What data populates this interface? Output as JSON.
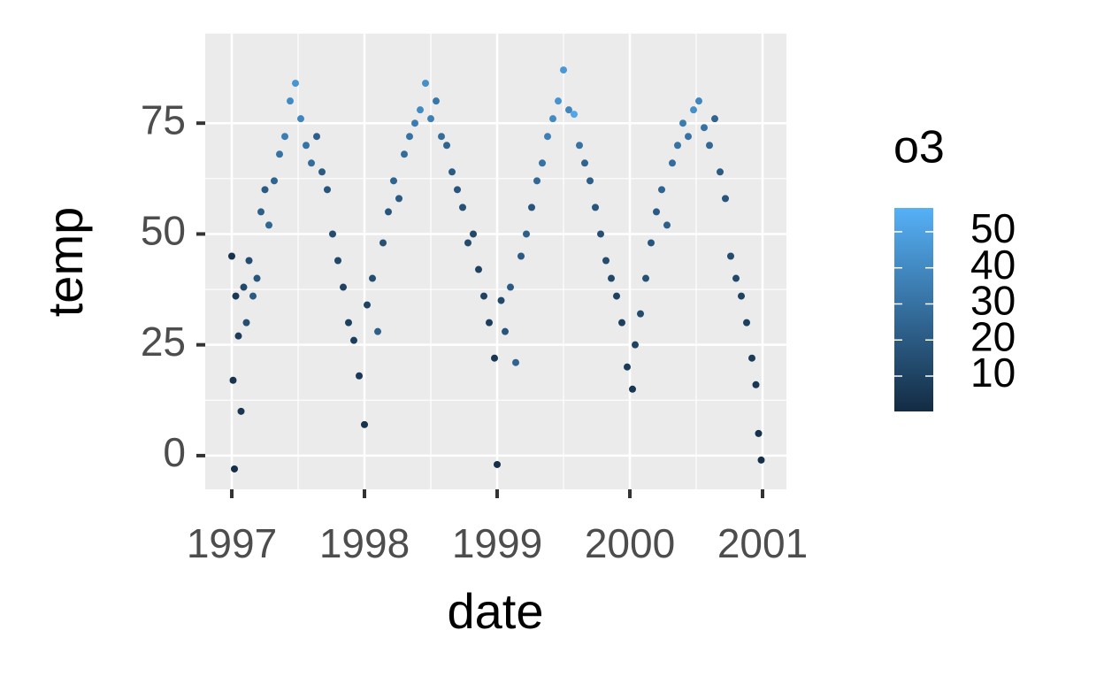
{
  "chart_data": {
    "type": "scatter",
    "x_label": "date",
    "y_label": "temp",
    "x": [
      1997.0,
      1997.01,
      1997.02,
      1997.03,
      1997.05,
      1997.07,
      1997.09,
      1997.11,
      1997.13,
      1997.16,
      1997.19,
      1997.22,
      1997.25,
      1997.28,
      1997.32,
      1997.36,
      1997.4,
      1997.44,
      1997.48,
      1997.52,
      1997.56,
      1997.6,
      1997.64,
      1997.68,
      1997.72,
      1997.76,
      1997.8,
      1997.84,
      1997.88,
      1997.92,
      1997.96,
      1998.0,
      1998.02,
      1998.06,
      1998.1,
      1998.14,
      1998.18,
      1998.22,
      1998.26,
      1998.3,
      1998.34,
      1998.38,
      1998.42,
      1998.46,
      1998.5,
      1998.54,
      1998.58,
      1998.62,
      1998.66,
      1998.7,
      1998.74,
      1998.78,
      1998.82,
      1998.86,
      1998.9,
      1998.94,
      1998.98,
      1999.0,
      1999.03,
      1999.06,
      1999.1,
      1999.14,
      1999.18,
      1999.22,
      1999.26,
      1999.3,
      1999.34,
      1999.38,
      1999.42,
      1999.46,
      1999.5,
      1999.54,
      1999.58,
      1999.62,
      1999.66,
      1999.7,
      1999.74,
      1999.78,
      1999.82,
      1999.86,
      1999.9,
      1999.94,
      1999.98,
      2000.02,
      2000.04,
      2000.08,
      2000.12,
      2000.16,
      2000.2,
      2000.24,
      2000.28,
      2000.32,
      2000.36,
      2000.4,
      2000.44,
      2000.48,
      2000.52,
      2000.56,
      2000.6,
      2000.64,
      2000.68,
      2000.72,
      2000.76,
      2000.8,
      2000.84,
      2000.88,
      2000.92,
      2000.95,
      2000.97,
      2000.99
    ],
    "y": [
      45,
      17,
      -3,
      36,
      27,
      10,
      38,
      30,
      44,
      36,
      40,
      55,
      60,
      52,
      62,
      68,
      72,
      80,
      84,
      76,
      70,
      66,
      72,
      64,
      60,
      50,
      44,
      38,
      30,
      26,
      18,
      7,
      34,
      40,
      28,
      48,
      55,
      62,
      58,
      68,
      72,
      75,
      78,
      84,
      76,
      80,
      72,
      70,
      64,
      60,
      56,
      48,
      50,
      42,
      36,
      30,
      22,
      -2,
      35,
      28,
      38,
      21,
      45,
      50,
      56,
      62,
      66,
      72,
      76,
      80,
      87,
      78,
      77,
      70,
      66,
      62,
      56,
      50,
      44,
      40,
      36,
      30,
      20,
      15,
      25,
      32,
      40,
      48,
      55,
      60,
      52,
      66,
      70,
      75,
      72,
      78,
      80,
      74,
      70,
      76,
      64,
      58,
      45,
      40,
      36,
      30,
      22,
      16,
      5,
      -1
    ],
    "o3": [
      3,
      4,
      2,
      6,
      8,
      5,
      12,
      15,
      14,
      20,
      18,
      22,
      20,
      25,
      24,
      30,
      35,
      40,
      45,
      38,
      30,
      28,
      22,
      20,
      18,
      14,
      12,
      10,
      9,
      8,
      6,
      3,
      10,
      14,
      22,
      16,
      18,
      24,
      20,
      28,
      30,
      34,
      40,
      42,
      36,
      32,
      28,
      24,
      20,
      18,
      16,
      14,
      12,
      10,
      10,
      8,
      5,
      2,
      12,
      18,
      20,
      24,
      20,
      22,
      18,
      26,
      30,
      36,
      40,
      44,
      46,
      38,
      52,
      30,
      24,
      22,
      18,
      16,
      14,
      12,
      10,
      9,
      7,
      5,
      10,
      14,
      16,
      18,
      20,
      24,
      22,
      28,
      30,
      34,
      30,
      42,
      38,
      30,
      26,
      24,
      20,
      18,
      14,
      12,
      10,
      9,
      7,
      5,
      3,
      2
    ],
    "xlim": [
      1996.8,
      2001.18
    ],
    "xticks": [
      1997,
      1998,
      1999,
      2000,
      2001
    ],
    "ylim": [
      -7.6,
      95.2
    ],
    "yticks": [
      0,
      25,
      50,
      75
    ],
    "grid": true,
    "minor_grid": true,
    "panel_color": "#EBEBEB",
    "color_legend": {
      "title": "o3",
      "limits": [
        0.2,
        56.6
      ],
      "ticks": [
        10,
        20,
        30,
        40,
        50
      ],
      "low": "#132B43",
      "high": "#56B1F7"
    }
  }
}
